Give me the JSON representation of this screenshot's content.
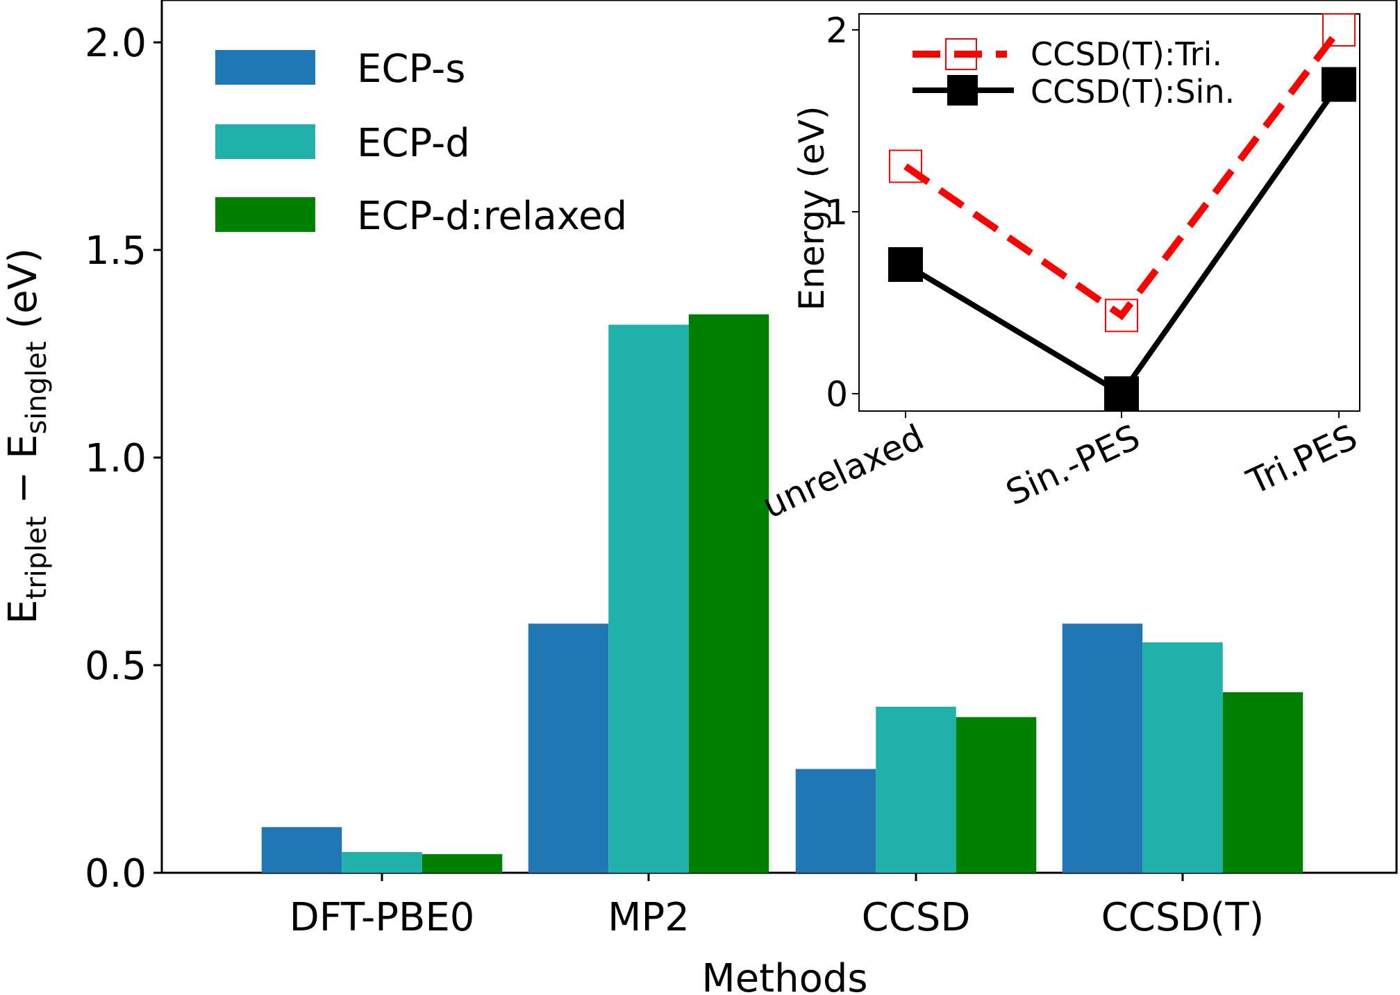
{
  "chart_data": [
    {
      "type": "bar",
      "categories": [
        "DFT-PBE0",
        "MP2",
        "CCSD",
        "CCSD(T)"
      ],
      "series": [
        {
          "name": "ECP-s",
          "color": "#1f77b4",
          "values": [
            0.11,
            0.6,
            0.25,
            0.6
          ]
        },
        {
          "name": "ECP-d",
          "color": "#20b2aa",
          "values": [
            0.05,
            1.32,
            0.4,
            0.555
          ]
        },
        {
          "name": "ECP-d:relaxed",
          "color": "#008000",
          "values": [
            0.045,
            1.345,
            0.375,
            0.435
          ]
        }
      ],
      "xlabel": "Methods",
      "ylabel": {
        "main": "E",
        "sub1": "triplet",
        "minus": " − E",
        "sub2": "singlet",
        "unit": " (eV)"
      },
      "ylim": [
        0,
        2.1
      ],
      "yticks": [
        "0.0",
        "0.5",
        "1.0",
        "1.5",
        "2.0"
      ],
      "grid": false,
      "legend_position": "top-left"
    },
    {
      "type": "line",
      "categories": [
        "unrelaxed",
        "Sin.-PES",
        "Tri.PES"
      ],
      "series": [
        {
          "name": "CCSD(T):Tri.",
          "color": "#ff0000",
          "style": "dashed",
          "marker": "open-square",
          "values": [
            1.25,
            0.43,
            2.0
          ]
        },
        {
          "name": "CCSD(T):Sin.",
          "color": "#000000",
          "style": "solid",
          "marker": "filled-square",
          "values": [
            0.71,
            0.0,
            1.7
          ]
        }
      ],
      "ylabel": "Energy (eV)",
      "ylim": [
        -0.1,
        2.1
      ],
      "yticks": [
        "0",
        "1",
        "2"
      ],
      "grid": false,
      "legend_position": "top"
    }
  ]
}
